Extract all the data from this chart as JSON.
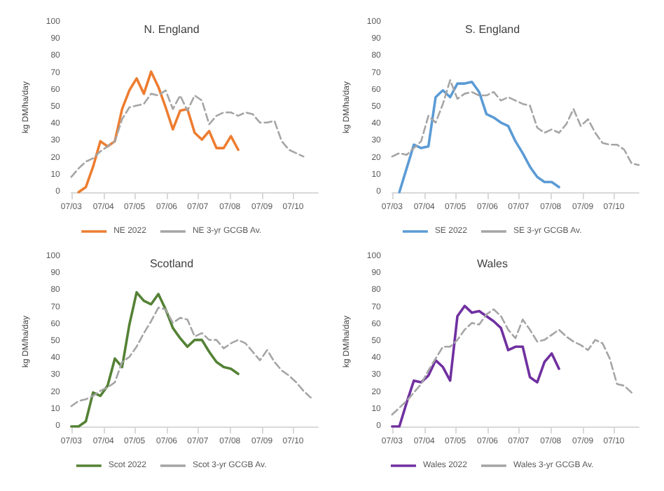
{
  "chart_data": [
    {
      "type": "line",
      "title": "N. England",
      "ylabel": "kg DM/ha/day",
      "legend": "bottom",
      "marker": "none",
      "grid": false,
      "x": [
        "--03-07",
        "--03-14",
        "--03-21",
        "--03-28",
        "--04-04",
        "--04-11",
        "--04-18",
        "--04-25",
        "--05-02",
        "--05-09",
        "--05-16",
        "--05-23",
        "--05-30",
        "--06-06",
        "--06-13",
        "--06-20",
        "--06-27",
        "--07-04",
        "--07-11",
        "--07-18",
        "--07-25",
        "--08-01",
        "--08-08",
        "--08-15",
        "--08-22",
        "--08-29",
        "--09-05",
        "--09-12",
        "--09-19",
        "--09-26",
        "--10-03",
        "--10-10",
        "--10-17"
      ],
      "xlim": [
        "--03-07",
        "--10-31"
      ],
      "xticks": [
        {
          "value": "--03-07",
          "label": "07/03"
        },
        {
          "value": "--04-07",
          "label": "07/04"
        },
        {
          "value": "--05-07",
          "label": "07/05"
        },
        {
          "value": "--06-07",
          "label": "07/06"
        },
        {
          "value": "--07-07",
          "label": "07/07"
        },
        {
          "value": "--08-07",
          "label": "07/08"
        },
        {
          "value": "--09-07",
          "label": "07/09"
        },
        {
          "value": "--10-07",
          "label": "07/10"
        }
      ],
      "ylim": [
        0,
        100
      ],
      "yticks": [
        0,
        10,
        20,
        30,
        40,
        50,
        60,
        70,
        80,
        90,
        100
      ],
      "series": [
        {
          "name": "NE 2022",
          "color": "#ed7d31",
          "line_style": "solid",
          "values": [
            null,
            0,
            3,
            15,
            30,
            27,
            30,
            49,
            60,
            67,
            58,
            71,
            62,
            50,
            37,
            48,
            49,
            35,
            31,
            36,
            26,
            26,
            33,
            25,
            null,
            null,
            null,
            null,
            null,
            null,
            null,
            null,
            null
          ]
        },
        {
          "name": "NE 3-yr GCGB Av.",
          "color": "#a5a5a5",
          "line_style": "dashed",
          "values": [
            9,
            14,
            18,
            20,
            24,
            27,
            30,
            43,
            50,
            51,
            52,
            58,
            57,
            60,
            49,
            57,
            48,
            57,
            54,
            40,
            45,
            47,
            47,
            45,
            47,
            46,
            41,
            41,
            42,
            30,
            25,
            23,
            21
          ]
        }
      ]
    },
    {
      "type": "line",
      "title": "S. England",
      "ylabel": "kg DM/ha/day",
      "legend": "bottom",
      "marker": "none",
      "grid": false,
      "x": [
        "--03-07",
        "--03-14",
        "--03-21",
        "--03-28",
        "--04-04",
        "--04-11",
        "--04-18",
        "--04-25",
        "--05-02",
        "--05-09",
        "--05-16",
        "--05-23",
        "--05-30",
        "--06-06",
        "--06-13",
        "--06-20",
        "--06-27",
        "--07-04",
        "--07-11",
        "--07-18",
        "--07-25",
        "--08-01",
        "--08-08",
        "--08-15",
        "--08-22",
        "--08-29",
        "--09-05",
        "--09-12",
        "--09-19",
        "--09-26",
        "--10-03",
        "--10-10",
        "--10-17",
        "--10-24",
        "--10-31"
      ],
      "xlim": [
        "--03-07",
        "--10-31"
      ],
      "xticks": [
        {
          "value": "--03-07",
          "label": "07/03"
        },
        {
          "value": "--04-07",
          "label": "07/04"
        },
        {
          "value": "--05-07",
          "label": "07/05"
        },
        {
          "value": "--06-07",
          "label": "07/06"
        },
        {
          "value": "--07-07",
          "label": "07/07"
        },
        {
          "value": "--08-07",
          "label": "07/08"
        },
        {
          "value": "--09-07",
          "label": "07/09"
        },
        {
          "value": "--10-07",
          "label": "07/10"
        }
      ],
      "ylim": [
        0,
        100
      ],
      "yticks": [
        0,
        10,
        20,
        30,
        40,
        50,
        60,
        70,
        80,
        90,
        100
      ],
      "series": [
        {
          "name": "SE 2022",
          "color": "#5b9bd5",
          "line_style": "solid",
          "values": [
            null,
            0,
            14,
            28,
            26,
            27,
            56,
            60,
            56,
            64,
            64,
            65,
            59,
            46,
            44,
            41,
            39,
            30,
            23,
            15,
            9,
            6,
            6,
            3,
            null,
            null,
            null,
            null,
            null,
            null,
            null,
            null,
            null,
            null,
            null
          ]
        },
        {
          "name": "SE 3-yr GCGB Av.",
          "color": "#a5a5a5",
          "line_style": "dashed",
          "values": [
            21,
            23,
            22,
            26,
            30,
            45,
            41,
            52,
            66,
            55,
            58,
            59,
            57,
            57,
            59,
            54,
            56,
            54,
            52,
            51,
            38,
            35,
            37,
            35,
            40,
            49,
            39,
            43,
            35,
            29,
            28,
            28,
            25,
            17,
            16
          ]
        }
      ]
    },
    {
      "type": "line",
      "title": "Scotland",
      "ylabel": "kg DM/ha/day",
      "legend": "bottom",
      "marker": "none",
      "grid": false,
      "x": [
        "--03-07",
        "--03-14",
        "--03-21",
        "--03-28",
        "--04-04",
        "--04-11",
        "--04-18",
        "--04-25",
        "--05-02",
        "--05-09",
        "--05-16",
        "--05-23",
        "--05-30",
        "--06-06",
        "--06-13",
        "--06-20",
        "--06-27",
        "--07-04",
        "--07-11",
        "--07-18",
        "--07-25",
        "--08-01",
        "--08-08",
        "--08-15",
        "--08-22",
        "--08-29",
        "--09-05",
        "--09-12",
        "--09-19",
        "--09-26",
        "--10-03",
        "--10-10",
        "--10-17",
        "--10-24"
      ],
      "xlim": [
        "--03-07",
        "--10-31"
      ],
      "xticks": [
        {
          "value": "--03-07",
          "label": "07/03"
        },
        {
          "value": "--04-07",
          "label": "07/04"
        },
        {
          "value": "--05-07",
          "label": "07/05"
        },
        {
          "value": "--06-07",
          "label": "07/06"
        },
        {
          "value": "--07-07",
          "label": "07/07"
        },
        {
          "value": "--08-07",
          "label": "07/08"
        },
        {
          "value": "--09-07",
          "label": "07/09"
        },
        {
          "value": "--10-07",
          "label": "07/10"
        }
      ],
      "ylim": [
        0,
        100
      ],
      "yticks": [
        0,
        10,
        20,
        30,
        40,
        50,
        60,
        70,
        80,
        90,
        100
      ],
      "series": [
        {
          "name": "Scot 2022",
          "color": "#548235",
          "line_style": "solid",
          "values": [
            0,
            0,
            3,
            20,
            18,
            24,
            40,
            35,
            60,
            79,
            74,
            72,
            78,
            69,
            58,
            52,
            47,
            51,
            51,
            44,
            38,
            35,
            34,
            31,
            null,
            null,
            null,
            null,
            null,
            null,
            null,
            null,
            null,
            null
          ]
        },
        {
          "name": "Scot 3-yr GCGB Av.",
          "color": "#a5a5a5",
          "line_style": "dashed",
          "values": [
            12,
            15,
            16,
            18,
            21,
            23,
            26,
            38,
            41,
            47,
            55,
            62,
            70,
            69,
            61,
            64,
            63,
            53,
            55,
            51,
            51,
            46,
            49,
            51,
            49,
            44,
            39,
            45,
            38,
            33,
            30,
            26,
            21,
            17
          ]
        }
      ]
    },
    {
      "type": "line",
      "title": "Wales",
      "ylabel": "kg DM/ha/day",
      "legend": "bottom",
      "marker": "none",
      "grid": false,
      "x": [
        "--03-07",
        "--03-14",
        "--03-21",
        "--03-28",
        "--04-04",
        "--04-11",
        "--04-18",
        "--04-25",
        "--05-02",
        "--05-09",
        "--05-16",
        "--05-23",
        "--05-30",
        "--06-06",
        "--06-13",
        "--06-20",
        "--06-27",
        "--07-04",
        "--07-11",
        "--07-18",
        "--07-25",
        "--08-01",
        "--08-08",
        "--08-15",
        "--08-22",
        "--08-29",
        "--09-05",
        "--09-12",
        "--09-19",
        "--09-26",
        "--10-03",
        "--10-10",
        "--10-17",
        "--10-24"
      ],
      "xlim": [
        "--03-07",
        "--10-31"
      ],
      "xticks": [
        {
          "value": "--03-07",
          "label": "07/03"
        },
        {
          "value": "--04-07",
          "label": "07/04"
        },
        {
          "value": "--05-07",
          "label": "07/05"
        },
        {
          "value": "--06-07",
          "label": "07/06"
        },
        {
          "value": "--07-07",
          "label": "07/07"
        },
        {
          "value": "--08-07",
          "label": "07/08"
        },
        {
          "value": "--09-07",
          "label": "07/09"
        },
        {
          "value": "--10-07",
          "label": "07/10"
        }
      ],
      "ylim": [
        0,
        100
      ],
      "yticks": [
        0,
        10,
        20,
        30,
        40,
        50,
        60,
        70,
        80,
        90,
        100
      ],
      "series": [
        {
          "name": "Wales 2022",
          "color": "#7030a0",
          "line_style": "solid",
          "values": [
            0,
            0,
            14,
            27,
            26,
            30,
            39,
            35,
            27,
            65,
            71,
            67,
            68,
            65,
            62,
            58,
            45,
            47,
            47,
            29,
            26,
            38,
            43,
            34,
            null,
            null,
            null,
            null,
            null,
            null,
            null,
            null,
            null,
            null
          ]
        },
        {
          "name": "Wales 3-yr GCGB Av.",
          "color": "#a5a5a5",
          "line_style": "dashed",
          "values": [
            7,
            11,
            15,
            20,
            25,
            33,
            40,
            47,
            47,
            51,
            57,
            61,
            60,
            66,
            69,
            65,
            57,
            52,
            63,
            57,
            50,
            51,
            54,
            57,
            53,
            50,
            48,
            45,
            51,
            49,
            40,
            25,
            24,
            20
          ]
        }
      ]
    }
  ]
}
